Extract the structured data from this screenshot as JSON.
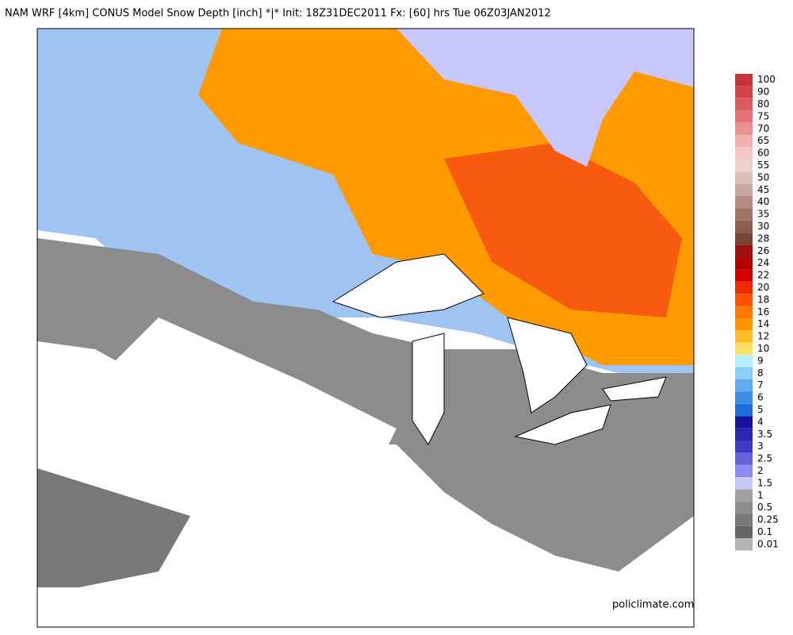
{
  "header": {
    "title": "NAM WRF [4km] CONUS Model Snow Depth [inch] *|* Init: 18Z31DEC2011 Fx: [60] hrs Tue 06Z03JAN2012"
  },
  "legend": {
    "items": [
      {
        "label": "100",
        "color": "#c8323c"
      },
      {
        "label": "90",
        "color": "#d4434a"
      },
      {
        "label": "80",
        "color": "#dc5a5e"
      },
      {
        "label": "75",
        "color": "#e47274"
      },
      {
        "label": "70",
        "color": "#ec9192"
      },
      {
        "label": "65",
        "color": "#f2b0b0"
      },
      {
        "label": "60",
        "color": "#f5c8c6"
      },
      {
        "label": "55",
        "color": "#ecd2cc"
      },
      {
        "label": "50",
        "color": "#dcc0b8"
      },
      {
        "label": "45",
        "color": "#c8a89e"
      },
      {
        "label": "40",
        "color": "#b48c82"
      },
      {
        "label": "35",
        "color": "#a07468"
      },
      {
        "label": "30",
        "color": "#8c5c50"
      },
      {
        "label": "28",
        "color": "#784438"
      },
      {
        "label": "26",
        "color": "#a01010"
      },
      {
        "label": "24",
        "color": "#b40000"
      },
      {
        "label": "22",
        "color": "#d20000"
      },
      {
        "label": "20",
        "color": "#f02800"
      },
      {
        "label": "18",
        "color": "#ff5000"
      },
      {
        "label": "16",
        "color": "#ff7800"
      },
      {
        "label": "14",
        "color": "#ff9600"
      },
      {
        "label": "12",
        "color": "#ffbe28"
      },
      {
        "label": "10",
        "color": "#ffe066"
      },
      {
        "label": "9",
        "color": "#b4f0ff"
      },
      {
        "label": "8",
        "color": "#8ccdfa"
      },
      {
        "label": "7",
        "color": "#64aaf0"
      },
      {
        "label": "6",
        "color": "#3c8ce6"
      },
      {
        "label": "5",
        "color": "#1e6edc"
      },
      {
        "label": "4",
        "color": "#1414a0"
      },
      {
        "label": "3.5",
        "color": "#2828b4"
      },
      {
        "label": "3",
        "color": "#3c3cc8"
      },
      {
        "label": "2.5",
        "color": "#6464dc"
      },
      {
        "label": "2",
        "color": "#8c8cf0"
      },
      {
        "label": "1.5",
        "color": "#c8c8ff"
      },
      {
        "label": "1",
        "color": "#a0a0a0"
      },
      {
        "label": "0.5",
        "color": "#8c8c8c"
      },
      {
        "label": "0.25",
        "color": "#787878"
      },
      {
        "label": "0.1",
        "color": "#646464"
      },
      {
        "label": "0.01",
        "color": "#b4b4b4"
      }
    ]
  },
  "watermark": "policlimate.com"
}
